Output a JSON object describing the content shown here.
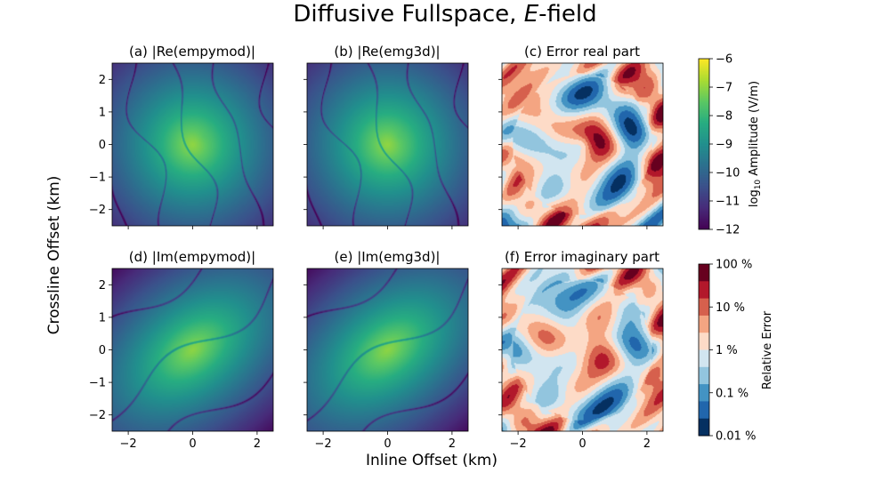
{
  "figure": {
    "title_prefix": "Diffusive Fullspace, ",
    "title_italic": "E",
    "title_suffix": "-field",
    "xlabel": "Inline Offset (km)",
    "ylabel": "Crossline Offset (km)"
  },
  "chart_data": [
    {
      "type": "heatmap",
      "title": "(a) |Re(empymod)|",
      "component": "real",
      "kind": "amplitude",
      "xlim": [
        -2.5,
        2.5
      ],
      "ylim": [
        -2.5,
        2.5
      ]
    },
    {
      "type": "heatmap",
      "title": "(b) |Re(emg3d)|",
      "component": "real",
      "kind": "amplitude",
      "xlim": [
        -2.5,
        2.5
      ],
      "ylim": [
        -2.5,
        2.5
      ]
    },
    {
      "type": "heatmap",
      "title": "(c) Error real part",
      "component": "real",
      "kind": "error",
      "xlim": [
        -2.5,
        2.5
      ],
      "ylim": [
        -2.5,
        2.5
      ]
    },
    {
      "type": "heatmap",
      "title": "(d) |Im(empymod)|",
      "component": "imag",
      "kind": "amplitude",
      "xlim": [
        -2.5,
        2.5
      ],
      "ylim": [
        -2.5,
        2.5
      ]
    },
    {
      "type": "heatmap",
      "title": "(e) |Im(emg3d)|",
      "component": "imag",
      "kind": "amplitude",
      "xlim": [
        -2.5,
        2.5
      ],
      "ylim": [
        -2.5,
        2.5
      ]
    },
    {
      "type": "heatmap",
      "title": "(f) Error imaginary part",
      "component": "imag",
      "kind": "error",
      "xlim": [
        -2.5,
        2.5
      ],
      "ylim": [
        -2.5,
        2.5
      ]
    }
  ],
  "axes": {
    "xticks": [
      -2,
      0,
      2
    ],
    "xtick_labels": [
      "−2",
      "0",
      "2"
    ],
    "yticks": [
      2,
      1,
      0,
      -1,
      -2
    ],
    "ytick_labels": [
      "2",
      "1",
      "0",
      "−1",
      "−2"
    ]
  },
  "colorbars": {
    "amplitude": {
      "label_prefix": "log",
      "label_sub": "10",
      "label_suffix": " Amplitude (V/m)",
      "range": [
        -12,
        -6
      ],
      "ticks": [
        -6,
        -7,
        -8,
        -9,
        -10,
        -11,
        -12
      ],
      "tick_labels": [
        "−6",
        "−7",
        "−8",
        "−9",
        "−10",
        "−11",
        "−12"
      ],
      "colormap": "viridis"
    },
    "error": {
      "label": "Relative Error",
      "tick_labels": [
        "100 %",
        "10 %",
        "1 %",
        "0.1 %",
        "0.01 %"
      ],
      "colors": [
        "#67001f",
        "#b2182b",
        "#d6604d",
        "#f4a582",
        "#fddbc7",
        "#d1e5f0",
        "#92c5de",
        "#4393c3",
        "#2166ac",
        "#053061"
      ],
      "colormap": "RdBu_r"
    }
  }
}
